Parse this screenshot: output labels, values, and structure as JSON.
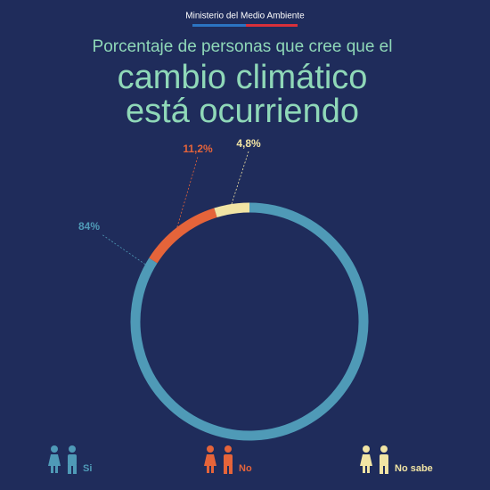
{
  "chart_data": {
    "type": "donut",
    "header": "Ministerio del Medio Ambiente",
    "subtitle": "Porcentaje de personas que cree que el",
    "title": [
      "cambio climático",
      "está ocurriendo"
    ],
    "categories": [
      "Si",
      "No",
      "No sabe"
    ],
    "values": [
      84,
      11.2,
      4.8
    ],
    "value_labels": [
      "84%",
      "11,2%",
      "4,8%"
    ],
    "colors": [
      "#4f9ab7",
      "#e5643a",
      "#f1e4a4"
    ]
  }
}
